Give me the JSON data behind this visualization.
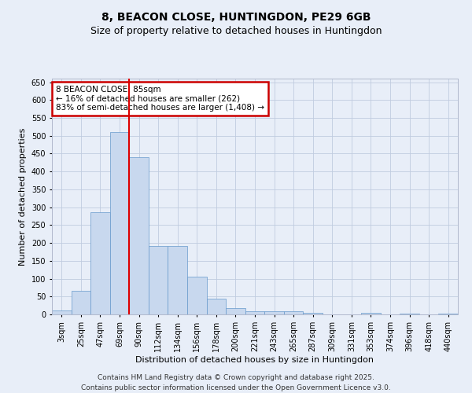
{
  "title_line1": "8, BEACON CLOSE, HUNTINGDON, PE29 6GB",
  "title_line2": "Size of property relative to detached houses in Huntingdon",
  "xlabel": "Distribution of detached houses by size in Huntingdon",
  "ylabel": "Number of detached properties",
  "footer_line1": "Contains HM Land Registry data © Crown copyright and database right 2025.",
  "footer_line2": "Contains public sector information licensed under the Open Government Licence v3.0.",
  "annotation_line1": "8 BEACON CLOSE: 85sqm",
  "annotation_line2": "← 16% of detached houses are smaller (262)",
  "annotation_line3": "83% of semi-detached houses are larger (1,408) →",
  "bar_labels": [
    "3sqm",
    "25sqm",
    "47sqm",
    "69sqm",
    "90sqm",
    "112sqm",
    "134sqm",
    "156sqm",
    "178sqm",
    "200sqm",
    "221sqm",
    "243sqm",
    "265sqm",
    "287sqm",
    "309sqm",
    "331sqm",
    "353sqm",
    "374sqm",
    "396sqm",
    "418sqm",
    "440sqm"
  ],
  "bar_values": [
    10,
    65,
    285,
    510,
    440,
    192,
    192,
    105,
    45,
    18,
    9,
    9,
    9,
    5,
    0,
    0,
    5,
    0,
    3,
    0,
    3
  ],
  "bar_color": "#c8d8ee",
  "bar_edge_color": "#6699cc",
  "vline_color": "#dd0000",
  "vline_x_idx": 3.5,
  "ylim": [
    0,
    660
  ],
  "yticks": [
    0,
    50,
    100,
    150,
    200,
    250,
    300,
    350,
    400,
    450,
    500,
    550,
    600,
    650
  ],
  "background_color": "#e8eef8",
  "axes_background_color": "#e8eef8",
  "grid_color": "#c0cce0",
  "annotation_box_edge_color": "#cc0000",
  "title_fontsize": 10,
  "subtitle_fontsize": 9,
  "axis_label_fontsize": 8,
  "tick_fontsize": 7,
  "annotation_fontsize": 7.5,
  "footer_fontsize": 6.5
}
